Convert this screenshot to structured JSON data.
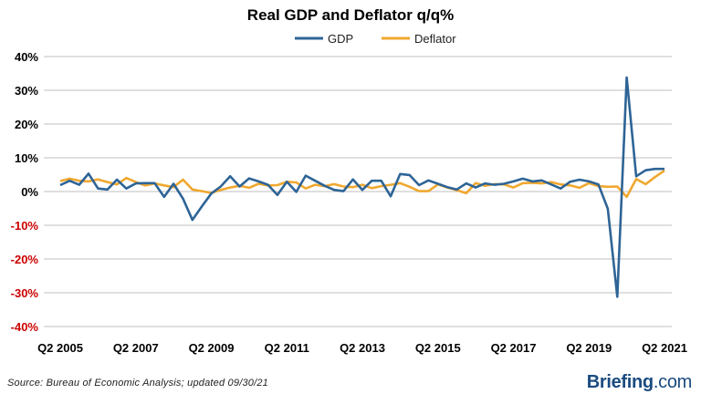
{
  "chart_data": {
    "type": "line",
    "title": "Real GDP and Deflator q/q%",
    "xlabel": "",
    "ylabel": "",
    "ylim": [
      -40,
      40
    ],
    "yticks": [
      40,
      30,
      20,
      10,
      0,
      -10,
      -20,
      -30,
      -40
    ],
    "ytick_labels": [
      "40%",
      "30%",
      "20%",
      "10%",
      "0%",
      "-10%",
      "-20%",
      "-30%",
      "-40%"
    ],
    "xtick_labels": [
      "Q2 2005",
      "Q2 2007",
      "Q2 2009",
      "Q2 2011",
      "Q2 2013",
      "Q2 2015",
      "Q2 2017",
      "Q2 2019",
      "Q2 2021"
    ],
    "legend_position": "top-center",
    "grid": true,
    "colors": {
      "gdp": "#2e6496",
      "deflator": "#f0a830",
      "negative_tick": "#cc0000",
      "positive_tick": "#000000",
      "grid": "#bfbfbf"
    },
    "x": [
      "Q2 2005",
      "Q3 2005",
      "Q4 2005",
      "Q1 2006",
      "Q2 2006",
      "Q3 2006",
      "Q4 2006",
      "Q1 2007",
      "Q2 2007",
      "Q3 2007",
      "Q4 2007",
      "Q1 2008",
      "Q2 2008",
      "Q3 2008",
      "Q4 2008",
      "Q1 2009",
      "Q2 2009",
      "Q3 2009",
      "Q4 2009",
      "Q1 2010",
      "Q2 2010",
      "Q3 2010",
      "Q4 2010",
      "Q1 2011",
      "Q2 2011",
      "Q3 2011",
      "Q4 2011",
      "Q1 2012",
      "Q2 2012",
      "Q3 2012",
      "Q4 2012",
      "Q1 2013",
      "Q2 2013",
      "Q3 2013",
      "Q4 2013",
      "Q1 2014",
      "Q2 2014",
      "Q3 2014",
      "Q4 2014",
      "Q1 2015",
      "Q2 2015",
      "Q3 2015",
      "Q4 2015",
      "Q1 2016",
      "Q2 2016",
      "Q3 2016",
      "Q4 2016",
      "Q1 2017",
      "Q2 2017",
      "Q3 2017",
      "Q4 2017",
      "Q1 2018",
      "Q2 2018",
      "Q3 2018",
      "Q4 2018",
      "Q1 2019",
      "Q2 2019",
      "Q3 2019",
      "Q4 2019",
      "Q1 2020",
      "Q2 2020",
      "Q3 2020",
      "Q4 2020",
      "Q1 2021",
      "Q2 2021"
    ],
    "series": [
      {
        "name": "GDP",
        "values": [
          1.9,
          3.2,
          2.0,
          5.3,
          0.9,
          0.6,
          3.5,
          0.9,
          2.4,
          2.5,
          2.5,
          -1.6,
          2.3,
          -2.1,
          -8.4,
          -4.4,
          -0.6,
          1.5,
          4.5,
          1.5,
          3.9,
          3.0,
          2.0,
          -1.0,
          2.9,
          -0.1,
          4.7,
          3.2,
          1.7,
          0.5,
          0.1,
          3.6,
          0.5,
          3.2,
          3.2,
          -1.4,
          5.2,
          4.9,
          1.9,
          3.3,
          2.3,
          1.3,
          0.6,
          2.4,
          1.2,
          2.4,
          2.0,
          2.3,
          3.0,
          3.8,
          3.0,
          3.3,
          2.1,
          0.9,
          2.9,
          3.5,
          3.0,
          2.1,
          -5.1,
          -31.2,
          33.8,
          4.5,
          6.3,
          6.7,
          6.7
        ]
      },
      {
        "name": "Deflator",
        "values": [
          3.1,
          3.8,
          3.2,
          3.0,
          3.6,
          2.8,
          2.1,
          4.0,
          2.8,
          1.8,
          2.4,
          1.8,
          1.3,
          3.5,
          0.6,
          0.1,
          -0.4,
          0.5,
          1.2,
          1.7,
          1.1,
          2.3,
          1.8,
          1.9,
          2.9,
          2.7,
          0.9,
          2.0,
          1.6,
          2.2,
          1.5,
          1.3,
          2.0,
          1.0,
          1.6,
          2.0,
          2.5,
          1.4,
          0.1,
          0.1,
          2.1,
          1.2,
          0.4,
          -0.5,
          2.5,
          1.7,
          2.2,
          2.1,
          1.2,
          2.5,
          2.6,
          2.4,
          2.8,
          2.1,
          1.8,
          1.1,
          2.5,
          1.6,
          1.4,
          1.5,
          -1.6,
          3.7,
          2.2,
          4.3,
          6.2
        ]
      }
    ]
  },
  "legend": {
    "gdp_label": "GDP",
    "deflator_label": "Deflator"
  },
  "footer": {
    "source": "Source: Bureau of Economic Analysis; updated 09/30/21",
    "brand_name": "Briefing",
    "brand_suffix": ".com"
  }
}
